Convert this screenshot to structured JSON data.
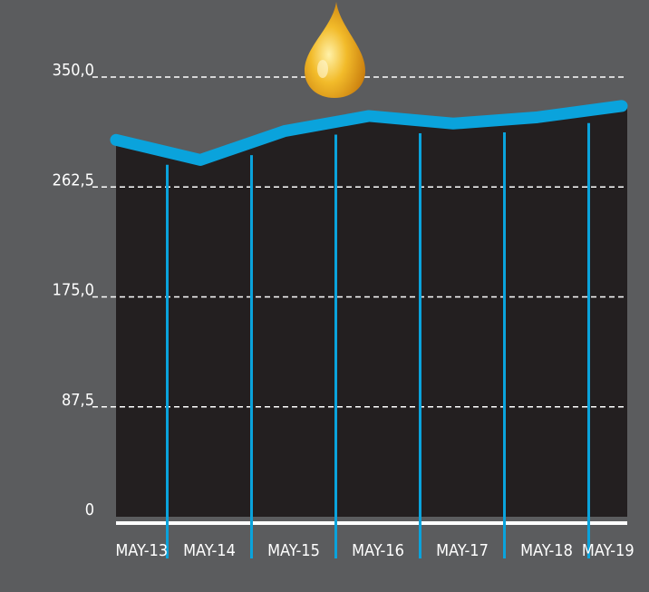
{
  "chart_data": {
    "type": "area",
    "categories": [
      "MAY-13",
      "MAY-14",
      "MAY-15",
      "MAY-16",
      "MAY-17",
      "MAY-18",
      "MAY-19"
    ],
    "series": [
      {
        "values": [
          300,
          284,
          307,
          319,
          313,
          318,
          327
        ]
      }
    ],
    "ylim": [
      0,
      350
    ],
    "yticks": [
      "0",
      "87,5",
      "175,0",
      "262,5",
      "350,0"
    ],
    "ytick_values": [
      0,
      87.5,
      175,
      262.5,
      350
    ],
    "grid": "horizontal dashed",
    "colors": {
      "background": "#5b5c5e",
      "area": "#231f20",
      "line": "#0aa3dc",
      "gridline": "#ffffff",
      "drop": "#e5a51c"
    },
    "decoration": "oil-drop-icon"
  }
}
